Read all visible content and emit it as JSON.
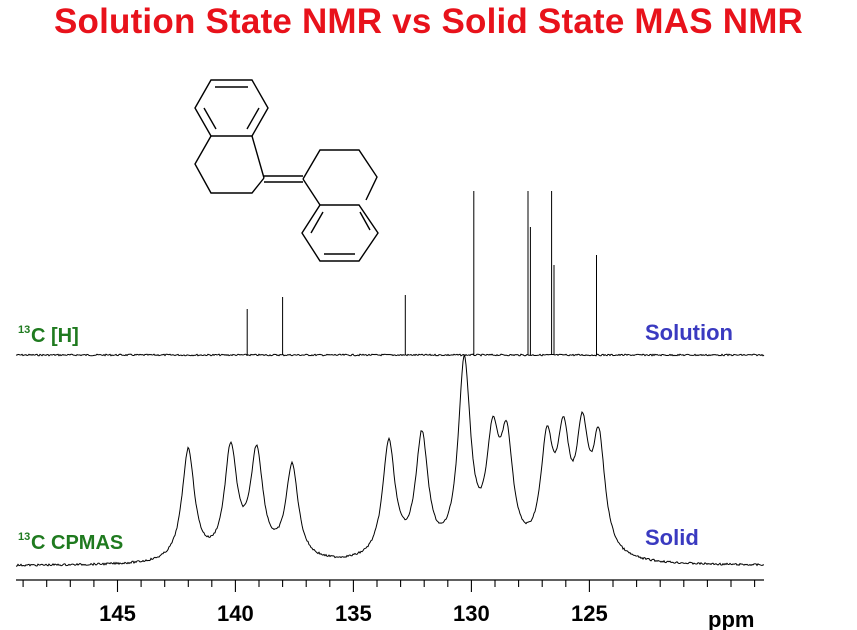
{
  "title": "Solution State NMR vs Solid State MAS NMR",
  "chart_data": [
    {
      "type": "line",
      "name": "solution-spectrum",
      "label_sup": "13",
      "label_main": "C [H]",
      "label_color": "#1f7a1f",
      "tag": "Solution",
      "tag_color": "#3a3ac0",
      "peaks": [
        {
          "ppm": 139.5,
          "height": 0.23
        },
        {
          "ppm": 138.0,
          "height": 0.29
        },
        {
          "ppm": 132.8,
          "height": 0.3
        },
        {
          "ppm": 129.9,
          "height": 0.82
        },
        {
          "ppm": 127.6,
          "height": 0.82
        },
        {
          "ppm": 127.5,
          "height": 0.64
        },
        {
          "ppm": 126.6,
          "height": 0.82
        },
        {
          "ppm": 126.5,
          "height": 0.45
        },
        {
          "ppm": 124.7,
          "height": 0.5
        }
      ]
    },
    {
      "type": "line",
      "name": "solid-spectrum",
      "label_sup": "13",
      "label_main": "C CPMAS",
      "label_color": "#1f7a1f",
      "tag": "Solid",
      "tag_color": "#3a3ac0",
      "peaks": [
        {
          "ppm": 142.0,
          "height": 0.56
        },
        {
          "ppm": 140.2,
          "height": 0.55
        },
        {
          "ppm": 139.1,
          "height": 0.53
        },
        {
          "ppm": 137.6,
          "height": 0.47
        },
        {
          "ppm": 133.5,
          "height": 0.58
        },
        {
          "ppm": 132.1,
          "height": 0.6
        },
        {
          "ppm": 130.3,
          "height": 0.96
        },
        {
          "ppm": 129.1,
          "height": 0.53
        },
        {
          "ppm": 128.5,
          "height": 0.53
        },
        {
          "ppm": 126.8,
          "height": 0.53
        },
        {
          "ppm": 126.1,
          "height": 0.53
        },
        {
          "ppm": 125.3,
          "height": 0.56
        },
        {
          "ppm": 124.6,
          "height": 0.55
        }
      ]
    }
  ],
  "x_axis": {
    "unit": "ppm",
    "ticks": [
      145,
      140,
      135,
      130,
      125
    ],
    "xlim": [
      149.3,
      117.6
    ],
    "reversed": true
  }
}
